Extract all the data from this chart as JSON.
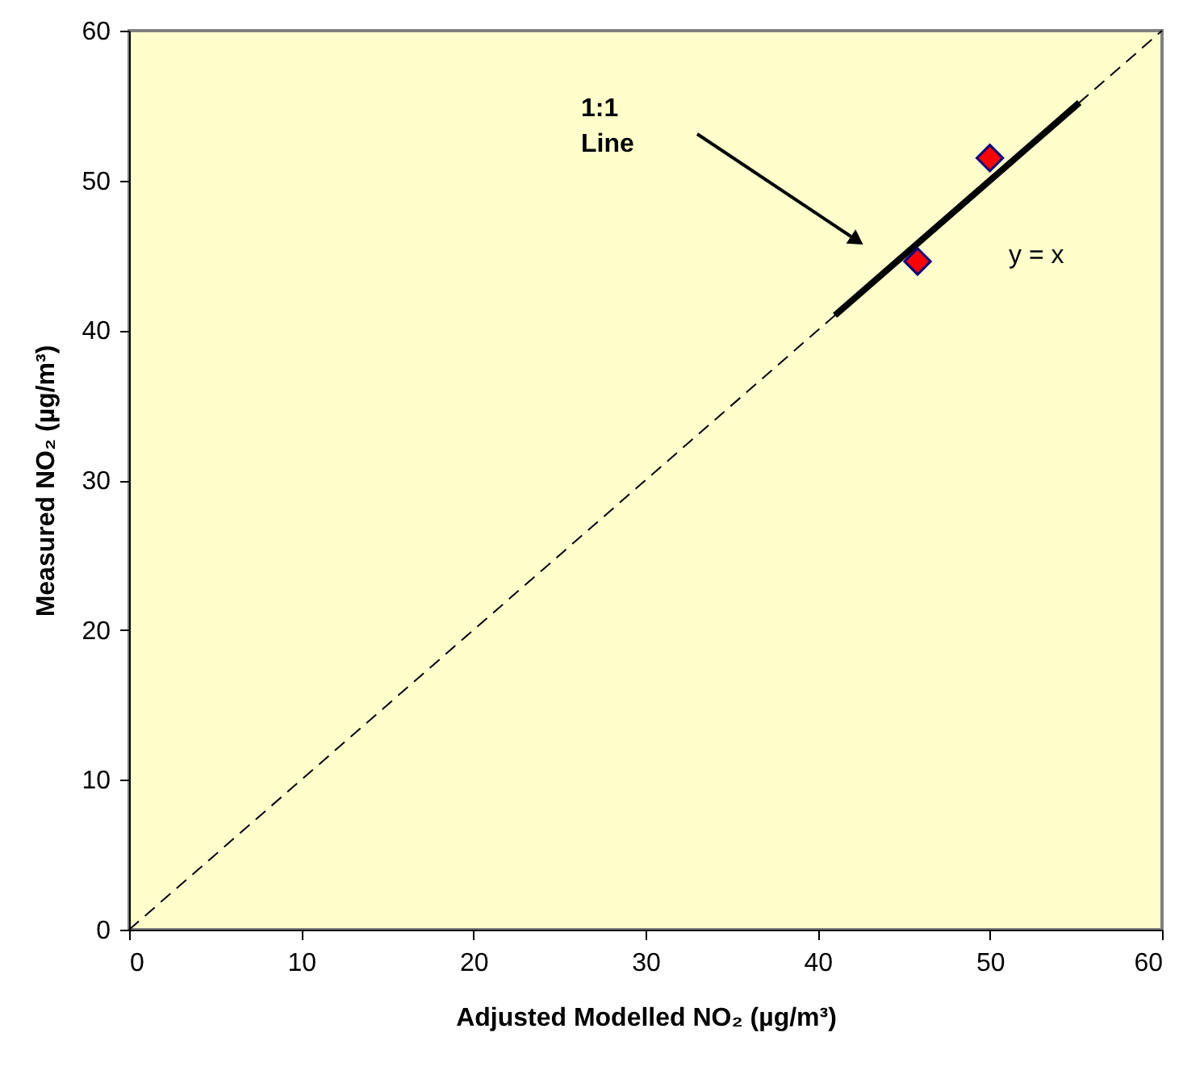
{
  "chart_data": {
    "type": "scatter",
    "xlabel": "Adjusted Modelled NO₂ (µg/m³)",
    "ylabel": "Measured NO₂ (µg/m³)",
    "xlim": [
      0,
      60
    ],
    "ylim": [
      0,
      60
    ],
    "xticks": [
      0,
      10,
      20,
      30,
      40,
      50,
      60
    ],
    "yticks": [
      0,
      10,
      20,
      30,
      40,
      50,
      60
    ],
    "grid": false,
    "series": [
      {
        "type": "line",
        "x": [
          0,
          60
        ],
        "values": [
          0,
          60
        ],
        "color": "#000000",
        "line_style": "dashed",
        "marker": "none"
      },
      {
        "type": "line",
        "x": [
          41,
          55.2
        ],
        "values": [
          41,
          55.2
        ],
        "color": "#000000",
        "line_style": "solid",
        "marker": "none"
      },
      {
        "x": [
          45.8,
          50.0
        ],
        "values": [
          44.6,
          51.5
        ],
        "color": "#ff0000",
        "marker": "diamond"
      }
    ],
    "annotations": [
      "1:1 Line",
      "y = x"
    ]
  }
}
